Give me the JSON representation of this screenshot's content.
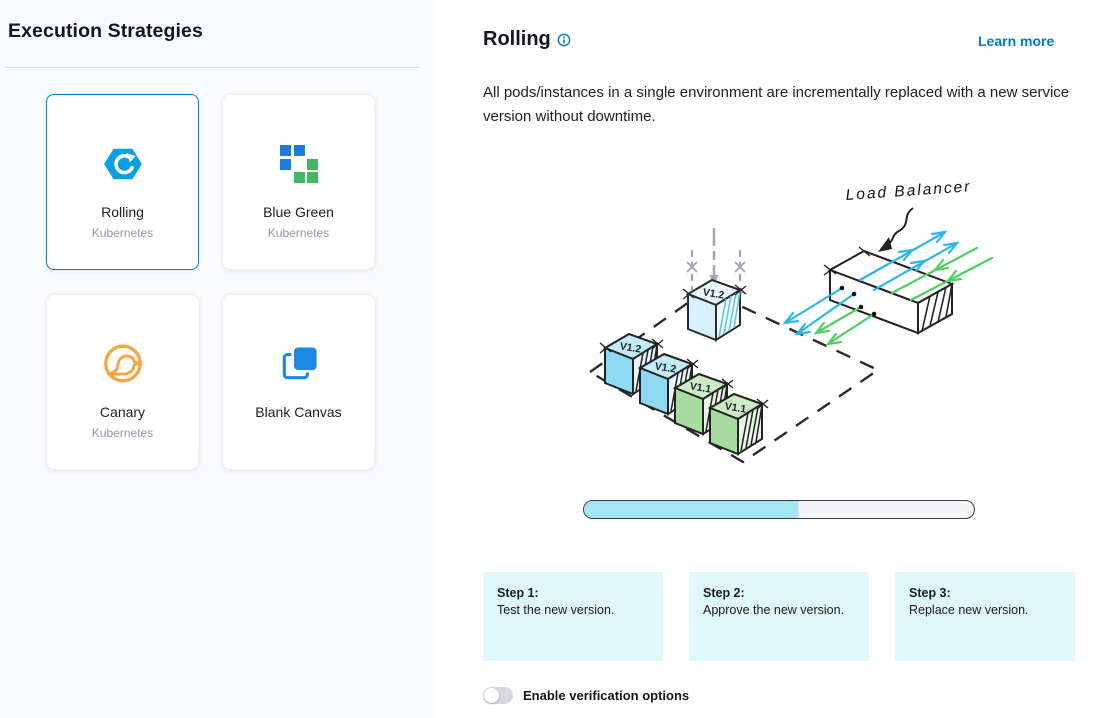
{
  "left_panel": {
    "title": "Execution Strategies",
    "cards": [
      {
        "label": "Rolling",
        "sublabel": "Kubernetes",
        "icon": "rolling-hexagon-icon",
        "selected": true
      },
      {
        "label": "Blue Green",
        "sublabel": "Kubernetes",
        "icon": "blue-green-squares-icon",
        "selected": false
      },
      {
        "label": "Canary",
        "sublabel": "Kubernetes",
        "icon": "canary-bird-icon",
        "selected": false
      },
      {
        "label": "Blank Canvas",
        "sublabel": "",
        "icon": "blank-canvas-icon",
        "selected": false
      }
    ]
  },
  "detail_panel": {
    "title": "Rolling",
    "info_icon": "info-icon",
    "learn_more_label": "Learn more",
    "description": "All pods/instances in a single environment are incrementally replaced with a new service version without downtime.",
    "diagram": {
      "load_balancer_label": "Load Balancer",
      "cube_labels": {
        "floating": "V1.2",
        "row": [
          "V1.2",
          "V1.2",
          "V1.1",
          "V1.1"
        ]
      },
      "progress_percent": 55
    },
    "steps": [
      {
        "title": "Step 1:",
        "text": "Test the new version."
      },
      {
        "title": "Step 2:",
        "text": "Approve the new version."
      },
      {
        "title": "Step 3:",
        "text": "Replace new version."
      }
    ],
    "verification_toggle": {
      "label": "Enable verification options",
      "enabled": false
    }
  },
  "colors": {
    "accent_blue": "#0278d5",
    "left_panel_bg": "#fafbfd",
    "step_box_bg": "#e0f7fb",
    "progress_fill": "#a5e6f5",
    "pod_blue": "#8ed9f3",
    "pod_green": "#a8dba0",
    "arrow_blue": "#2bb6ef",
    "arrow_green": "#4fd05f",
    "canary_orange": "#f9a43c",
    "bluegreen_blue": "#1c7ce0",
    "bluegreen_green": "#3eb961"
  }
}
